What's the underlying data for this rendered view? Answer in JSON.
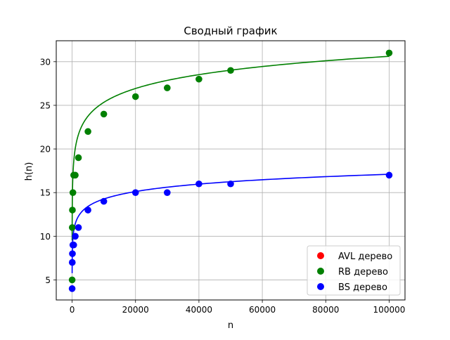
{
  "chart_data": {
    "type": "scatter",
    "title": "Сводный график",
    "xlabel": "n",
    "ylabel": "h(n)",
    "xlim": [
      -5000,
      105000
    ],
    "ylim": [
      2.7,
      32.4
    ],
    "grid": true,
    "legend_position": "bottom-right",
    "x_ticks": [
      0,
      20000,
      40000,
      60000,
      80000,
      100000
    ],
    "y_ticks": [
      5,
      10,
      15,
      20,
      25,
      30
    ],
    "series": [
      {
        "name": "AVL дерево",
        "color": "#ff0000",
        "points": [],
        "curve": null
      },
      {
        "name": "RB дерево",
        "color": "#008000",
        "points": [
          [
            10,
            5
          ],
          [
            50,
            11
          ],
          [
            100,
            13
          ],
          [
            250,
            15
          ],
          [
            500,
            17
          ],
          [
            1000,
            17
          ],
          [
            2000,
            19
          ],
          [
            5000,
            22
          ],
          [
            10000,
            24
          ],
          [
            20000,
            26
          ],
          [
            30000,
            27
          ],
          [
            40000,
            28
          ],
          [
            50000,
            29
          ],
          [
            100000,
            31
          ]
        ],
        "curve": {
          "a": 2.29,
          "b": 4.25
        }
      },
      {
        "name": "BS дерево",
        "color": "#0000ff",
        "points": [
          [
            10,
            4
          ],
          [
            50,
            7
          ],
          [
            100,
            8
          ],
          [
            250,
            9
          ],
          [
            500,
            9
          ],
          [
            1000,
            10
          ],
          [
            2000,
            11
          ],
          [
            5000,
            13
          ],
          [
            10000,
            14
          ],
          [
            20000,
            15
          ],
          [
            30000,
            15
          ],
          [
            40000,
            16
          ],
          [
            50000,
            16
          ],
          [
            100000,
            17
          ]
        ],
        "curve": {
          "a": 1.23,
          "b": 2.94
        }
      }
    ]
  }
}
